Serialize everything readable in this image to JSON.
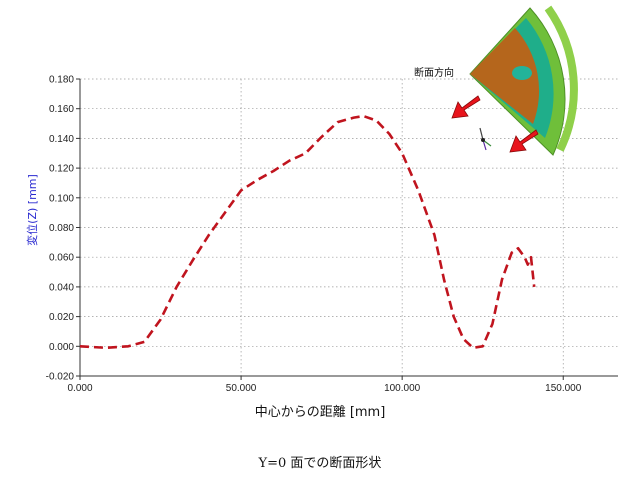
{
  "chart_data": {
    "type": "line",
    "title": "",
    "xlabel": "中心からの距離 [mm]",
    "ylabel": "変位(Z) [mm]",
    "caption": "Y=0 面での断面形状",
    "annotation": "断面方向",
    "xlim": [
      0,
      167000
    ],
    "ylim": [
      -0.02,
      0.18
    ],
    "xticks": [
      0,
      50000,
      100000,
      150000
    ],
    "xtick_labels": [
      "0.000",
      "50.000",
      "100.000",
      "150.000"
    ],
    "yticks": [
      -0.02,
      0.0,
      0.02,
      0.04,
      0.06,
      0.08,
      0.1,
      0.12,
      0.14,
      0.16,
      0.18
    ],
    "ytick_labels": [
      "-0.020",
      "0.000",
      "0.020",
      "0.040",
      "0.060",
      "0.080",
      "0.100",
      "0.120",
      "0.140",
      "0.160",
      "0.180"
    ],
    "grid": true,
    "series": [
      {
        "color": "#c0141e",
        "style": "dashed",
        "x": [
          0,
          8000,
          15000,
          20000,
          25000,
          30000,
          35000,
          40000,
          45000,
          50000,
          55000,
          60000,
          65000,
          70000,
          75000,
          80000,
          85000,
          88000,
          92000,
          96000,
          100000,
          105000,
          110000,
          113000,
          116000,
          119000,
          122000,
          125000,
          128000,
          131000,
          134000,
          136000,
          138000,
          139000,
          140000,
          141000
        ],
        "y": [
          0.0,
          -0.001,
          0.0,
          0.003,
          0.018,
          0.04,
          0.058,
          0.075,
          0.09,
          0.105,
          0.112,
          0.118,
          0.125,
          0.13,
          0.141,
          0.151,
          0.154,
          0.155,
          0.152,
          0.143,
          0.13,
          0.105,
          0.075,
          0.045,
          0.02,
          0.005,
          -0.001,
          0.0,
          0.015,
          0.045,
          0.063,
          0.066,
          0.06,
          0.055,
          0.06,
          0.04
        ]
      }
    ]
  }
}
